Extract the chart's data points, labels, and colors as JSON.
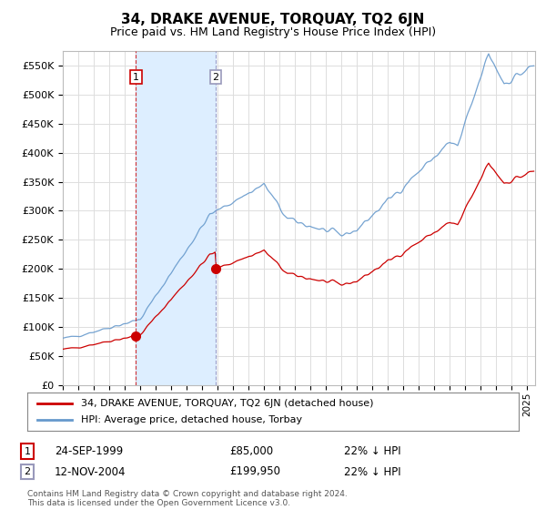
{
  "title": "34, DRAKE AVENUE, TORQUAY, TQ2 6JN",
  "subtitle": "Price paid vs. HM Land Registry's House Price Index (HPI)",
  "legend_line1": "34, DRAKE AVENUE, TORQUAY, TQ2 6JN (detached house)",
  "legend_line2": "HPI: Average price, detached house, Torbay",
  "transaction1_date": "24-SEP-1999",
  "transaction1_price": "£85,000",
  "transaction1_hpi": "22% ↓ HPI",
  "transaction1_year": 1999.73,
  "transaction1_value": 85000,
  "transaction2_date": "12-NOV-2004",
  "transaction2_price": "£199,950",
  "transaction2_hpi": "22% ↓ HPI",
  "transaction2_year": 2004.87,
  "transaction2_value": 199950,
  "footer": "Contains HM Land Registry data © Crown copyright and database right 2024.\nThis data is licensed under the Open Government Licence v3.0.",
  "line_color_property": "#cc0000",
  "line_color_hpi": "#6699cc",
  "vline1_color": "#cc0000",
  "vline2_color": "#8888bb",
  "marker_color": "#cc0000",
  "shade_color": "#ddeeff",
  "ylim": [
    0,
    575000
  ],
  "xlim_start": 1995,
  "xlim_end": 2025.5,
  "background_color": "#ffffff",
  "grid_color": "#dddddd",
  "yticks": [
    0,
    50000,
    100000,
    150000,
    200000,
    250000,
    300000,
    350000,
    400000,
    450000,
    500000,
    550000
  ]
}
